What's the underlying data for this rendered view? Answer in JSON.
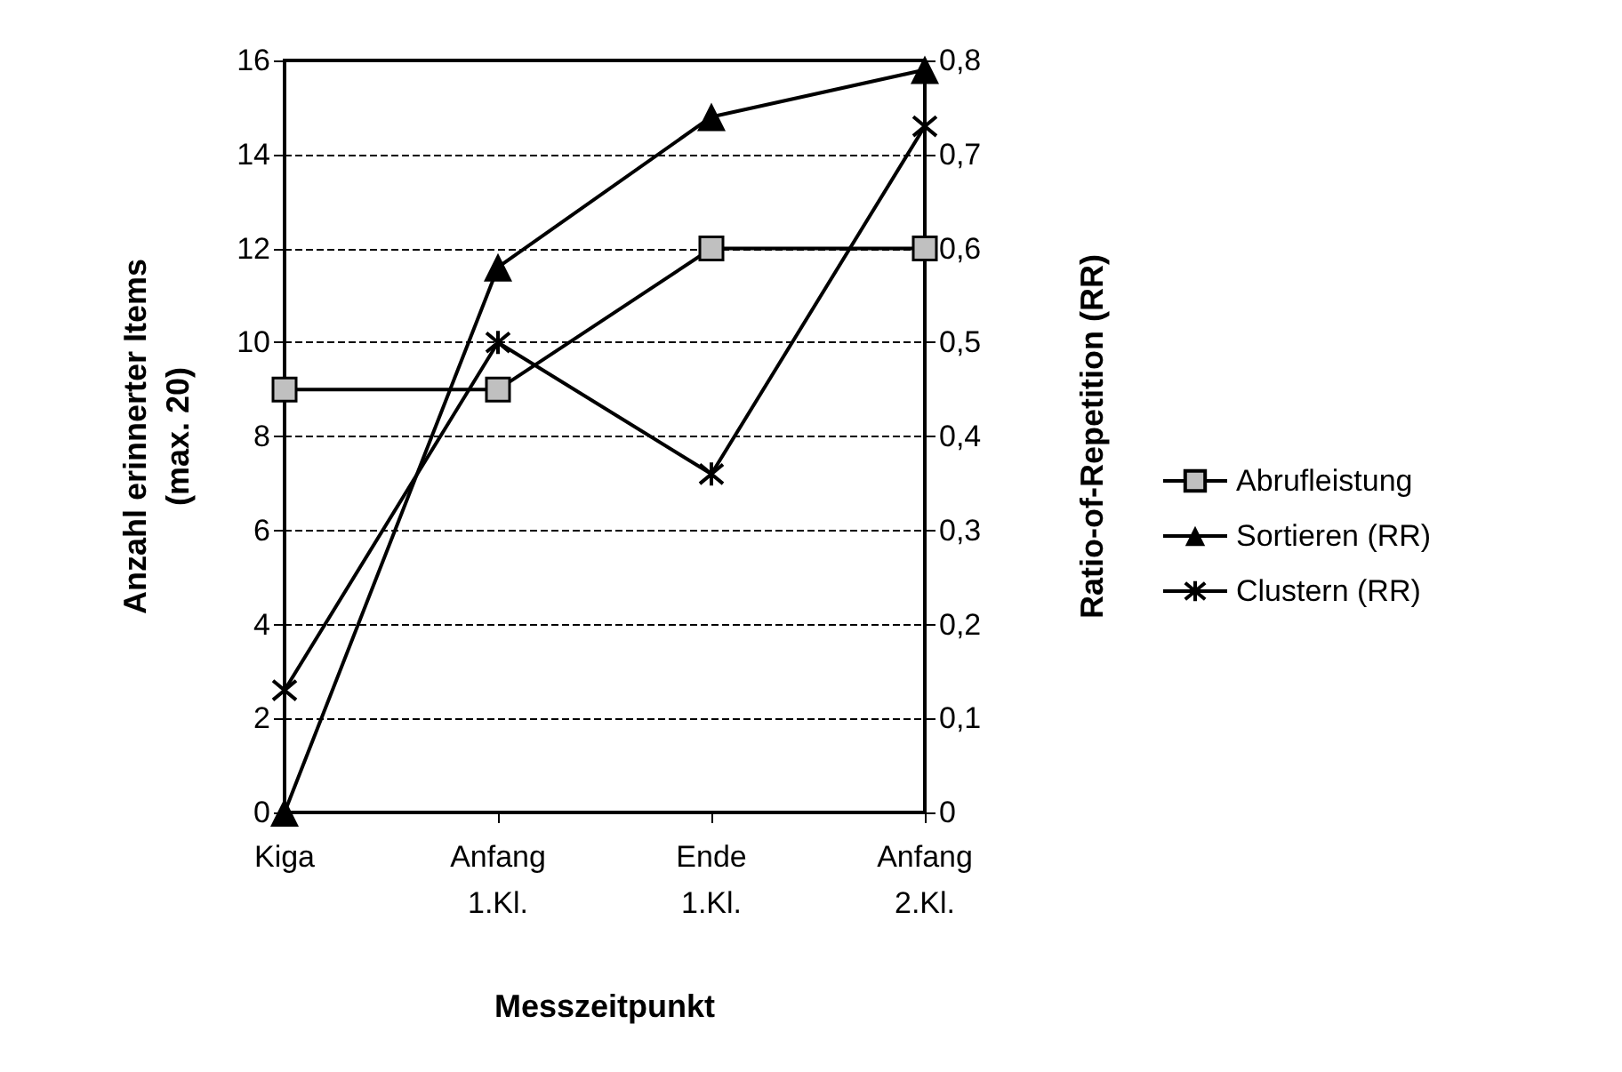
{
  "chart_data": {
    "type": "line",
    "xlabel": "Messzeitpunkt",
    "ylabel": "Anzahl erinnerter Items\n(max. 20)",
    "y2label": "Ratio-of-Repetition (RR)",
    "categories": [
      "Kiga",
      "Anfang\n1.Kl.",
      "Ende\n1.Kl.",
      "Anfang\n2.Kl."
    ],
    "series": [
      {
        "name": "Abrufleistung",
        "color": "#c0c0c0",
        "marker": "square",
        "values": [
          9,
          9,
          12,
          12
        ]
      },
      {
        "name": "Sortieren (RR)",
        "color": "#000000",
        "marker": "triangle",
        "axis": "y2",
        "values": [
          0,
          0.58,
          0.74,
          0.79
        ]
      },
      {
        "name": "Clustern (RR)",
        "color": "#000000",
        "marker": "cross",
        "axis": "y2",
        "values": [
          0.13,
          0.5,
          0.36,
          0.73
        ]
      }
    ],
    "ylim": [
      0,
      16
    ],
    "yticks": [
      0,
      2,
      4,
      6,
      8,
      10,
      12,
      14,
      16
    ],
    "y2lim": [
      0,
      0.8
    ],
    "y2ticks": [
      0,
      {
        "value": 0.1,
        "label": "0,1"
      },
      {
        "value": 0.2,
        "label": "0,2"
      },
      {
        "value": 0.3,
        "label": "0,3"
      },
      {
        "value": 0.4,
        "label": "0,4"
      },
      {
        "value": 0.5,
        "label": "0,5"
      },
      {
        "value": 0.6,
        "label": "0,6"
      },
      {
        "value": 0.7,
        "label": "0,7"
      },
      {
        "value": 0.8,
        "label": "0,8"
      }
    ],
    "grid": "y",
    "legend": "right",
    "line_style": "solid"
  }
}
